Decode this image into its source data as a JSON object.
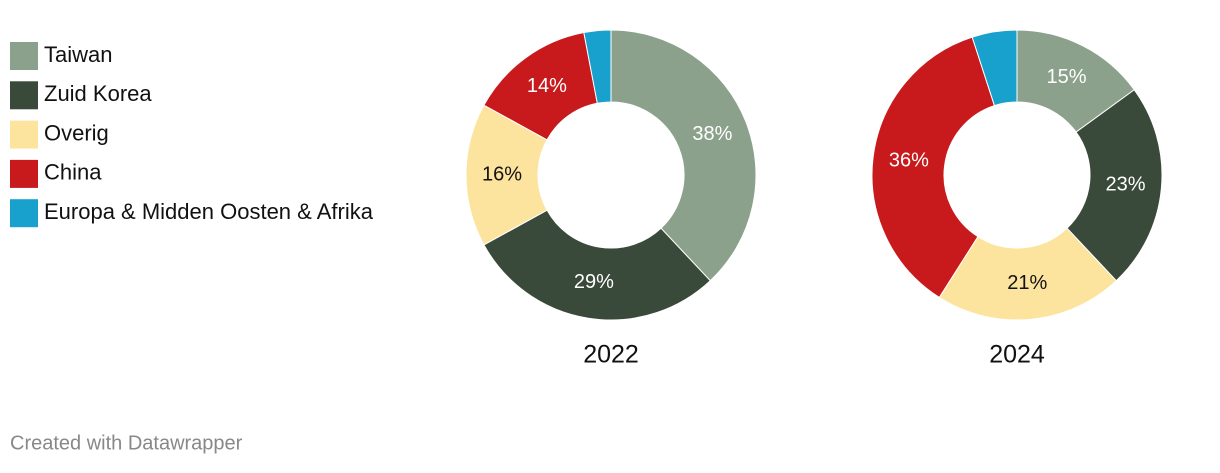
{
  "chart_data": [
    {
      "type": "pie",
      "title": "2022",
      "categories": [
        "Taiwan",
        "Zuid Korea",
        "Overig",
        "China",
        "Europa & Midden Oosten & Afrika"
      ],
      "values": [
        38,
        29,
        16,
        14,
        3
      ],
      "value_labels": [
        "38%",
        "29%",
        "16%",
        "14%",
        null
      ],
      "colors": [
        "#8ca18c",
        "#3a4a3a",
        "#fde49e",
        "#c81a1c",
        "#18a1cd"
      ]
    },
    {
      "type": "pie",
      "title": "2024",
      "categories": [
        "Taiwan",
        "Zuid Korea",
        "Overig",
        "China",
        "Europa & Midden Oosten & Afrika"
      ],
      "values": [
        15,
        23,
        21,
        36,
        5
      ],
      "value_labels": [
        "15%",
        "23%",
        "21%",
        "36%",
        null
      ],
      "colors": [
        "#8ca18c",
        "#3a4a3a",
        "#fde49e",
        "#c81a1c",
        "#18a1cd"
      ]
    }
  ],
  "footer": "Created with Datawrapper"
}
